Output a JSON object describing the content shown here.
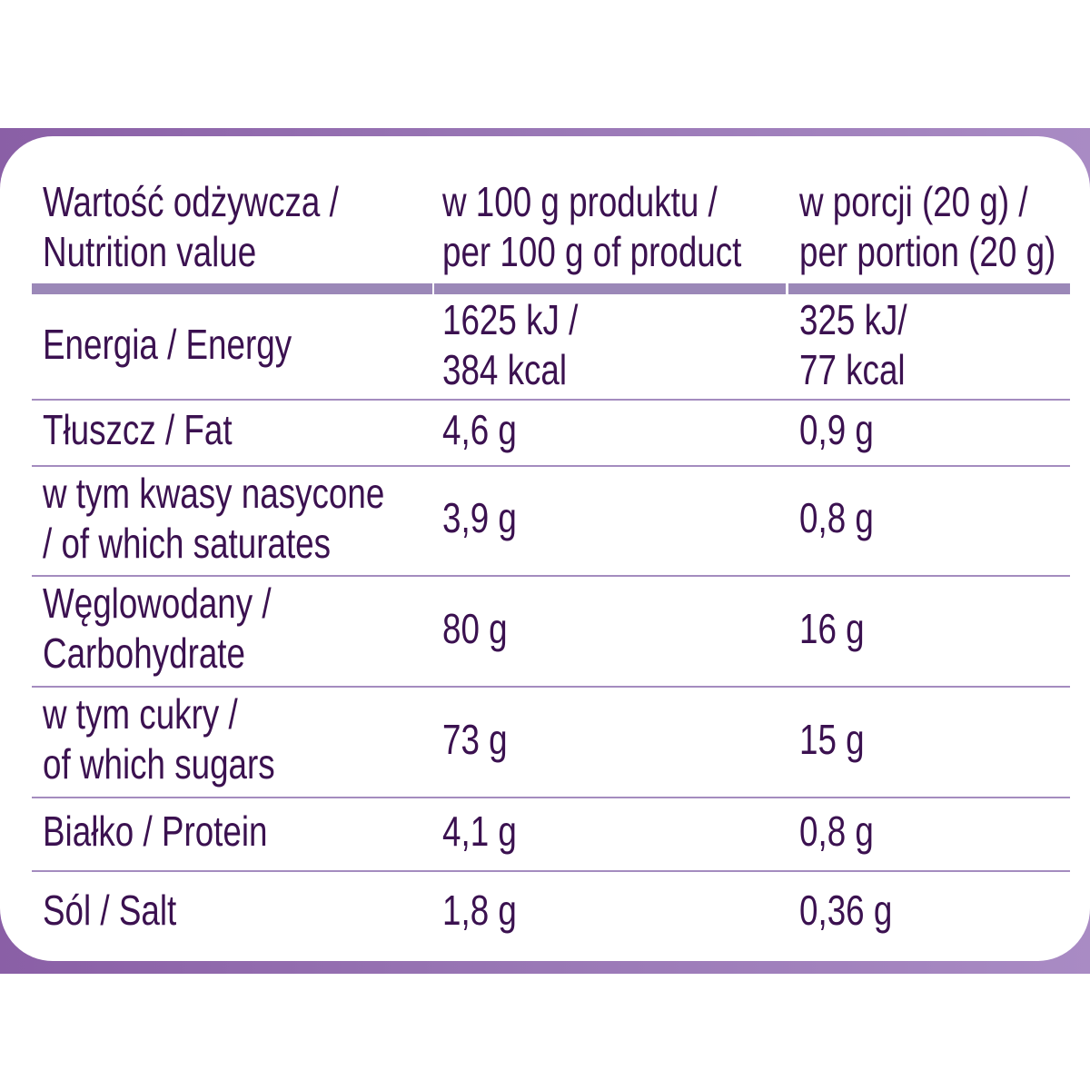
{
  "colors": {
    "frame": "#8a5fa6",
    "text": "#3b1150",
    "header_bar": "#9b88b8",
    "row_line": "#a48cbf"
  },
  "header": {
    "col1": [
      "Wartość odżywcza /",
      "Nutrition value"
    ],
    "col2": [
      "w 100 g produktu /",
      "per 100 g of product"
    ],
    "col3": [
      "w porcji (20 g) /",
      "per portion (20 g)"
    ]
  },
  "rows": [
    {
      "label": [
        "Energia / Energy"
      ],
      "per100": [
        "1625 kJ /",
        "384 kcal"
      ],
      "portion": [
        "325 kJ/",
        "77 kcal"
      ]
    },
    {
      "label": [
        "Tłuszcz / Fat"
      ],
      "per100": [
        "4,6 g"
      ],
      "portion": [
        "0,9 g"
      ]
    },
    {
      "label": [
        "w tym kwasy nasycone",
        "/ of which saturates"
      ],
      "per100": [
        "3,9 g"
      ],
      "portion": [
        "0,8 g"
      ]
    },
    {
      "label": [
        "Węglowodany /",
        "Carbohydrate"
      ],
      "per100": [
        "80 g"
      ],
      "portion": [
        "16 g"
      ]
    },
    {
      "label": [
        "w tym cukry /",
        "of which sugars"
      ],
      "per100": [
        "73 g"
      ],
      "portion": [
        "15 g"
      ]
    },
    {
      "label": [
        "Białko / Protein"
      ],
      "per100": [
        "4,1 g"
      ],
      "portion": [
        "0,8 g"
      ]
    },
    {
      "label": [
        "Sól / Salt"
      ],
      "per100": [
        "1,8 g"
      ],
      "portion": [
        "0,36 g"
      ]
    }
  ]
}
